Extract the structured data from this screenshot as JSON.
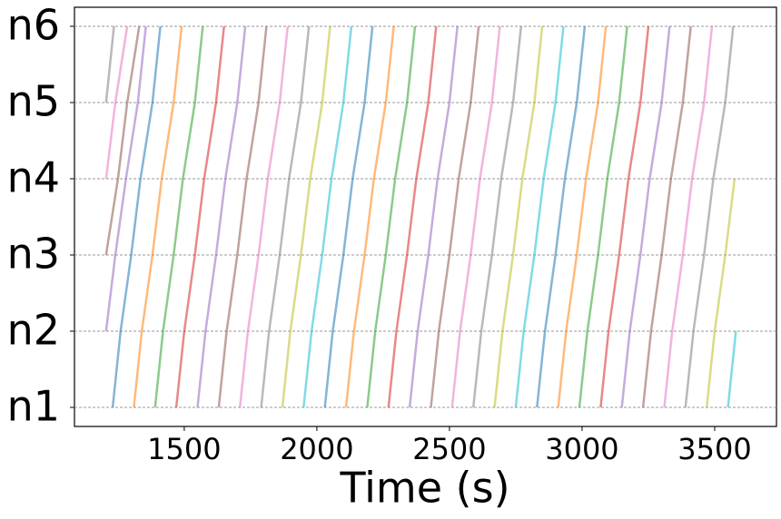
{
  "chart_data": {
    "type": "line",
    "x_label": "Time (s)",
    "xlim": [
      1086,
      3733
    ],
    "xticks": [
      1500,
      2000,
      2500,
      3000,
      3500
    ],
    "ylim": [
      0.75,
      6.25
    ],
    "yticks": [
      {
        "value": 1,
        "label": "n1"
      },
      {
        "value": 2,
        "label": "n2"
      },
      {
        "value": 3,
        "label": "n3"
      },
      {
        "value": 4,
        "label": "n4"
      },
      {
        "value": 5,
        "label": "n5"
      },
      {
        "value": 6,
        "label": "n6"
      }
    ],
    "grid": true,
    "series": [
      {
        "color": "#9467bd",
        "x": [
          1205,
          1240,
          1280,
          1325,
          1355
        ],
        "values": [
          2,
          3,
          4,
          5,
          6
        ]
      },
      {
        "color": "#8c564b",
        "x": [
          1205,
          1250,
          1285,
          1330
        ],
        "values": [
          3,
          4,
          5,
          6
        ]
      },
      {
        "color": "#e377c2",
        "x": [
          1205,
          1240,
          1285
        ],
        "values": [
          4,
          5,
          6
        ]
      },
      {
        "color": "#7f7f7f",
        "x": [
          1205,
          1235
        ],
        "values": [
          5,
          6
        ]
      },
      {
        "color": "#1f77b4",
        "x": [
          1230,
          1260,
          1300,
          1335,
          1380,
          1410
        ],
        "values": [
          1,
          2,
          3,
          4,
          5,
          6
        ]
      },
      {
        "color": "#ff7f0e",
        "x": [
          1310,
          1340,
          1380,
          1415,
          1460,
          1490
        ],
        "values": [
          1,
          2,
          3,
          4,
          5,
          6
        ]
      },
      {
        "color": "#2ca02c",
        "x": [
          1390,
          1420,
          1460,
          1495,
          1540,
          1570
        ],
        "values": [
          1,
          2,
          3,
          4,
          5,
          6
        ]
      },
      {
        "color": "#d62728",
        "x": [
          1470,
          1500,
          1540,
          1575,
          1620,
          1650
        ],
        "values": [
          1,
          2,
          3,
          4,
          5,
          6
        ]
      },
      {
        "color": "#9467bd",
        "x": [
          1550,
          1580,
          1620,
          1655,
          1700,
          1730
        ],
        "values": [
          1,
          2,
          3,
          4,
          5,
          6
        ]
      },
      {
        "color": "#8c564b",
        "x": [
          1630,
          1660,
          1700,
          1735,
          1780,
          1810
        ],
        "values": [
          1,
          2,
          3,
          4,
          5,
          6
        ]
      },
      {
        "color": "#e377c2",
        "x": [
          1710,
          1740,
          1780,
          1815,
          1860,
          1890
        ],
        "values": [
          1,
          2,
          3,
          4,
          5,
          6
        ]
      },
      {
        "color": "#7f7f7f",
        "x": [
          1790,
          1820,
          1860,
          1895,
          1940,
          1970
        ],
        "values": [
          1,
          2,
          3,
          4,
          5,
          6
        ]
      },
      {
        "color": "#bcbd22",
        "x": [
          1870,
          1900,
          1940,
          1975,
          2020,
          2050
        ],
        "values": [
          1,
          2,
          3,
          4,
          5,
          6
        ]
      },
      {
        "color": "#17becf",
        "x": [
          1950,
          1980,
          2020,
          2055,
          2100,
          2130
        ],
        "values": [
          1,
          2,
          3,
          4,
          5,
          6
        ]
      },
      {
        "color": "#1f77b4",
        "x": [
          2030,
          2060,
          2100,
          2135,
          2180,
          2210
        ],
        "values": [
          1,
          2,
          3,
          4,
          5,
          6
        ]
      },
      {
        "color": "#ff7f0e",
        "x": [
          2110,
          2140,
          2180,
          2215,
          2260,
          2290
        ],
        "values": [
          1,
          2,
          3,
          4,
          5,
          6
        ]
      },
      {
        "color": "#2ca02c",
        "x": [
          2190,
          2220,
          2260,
          2295,
          2340,
          2370
        ],
        "values": [
          1,
          2,
          3,
          4,
          5,
          6
        ]
      },
      {
        "color": "#d62728",
        "x": [
          2270,
          2300,
          2340,
          2375,
          2420,
          2450
        ],
        "values": [
          1,
          2,
          3,
          4,
          5,
          6
        ]
      },
      {
        "color": "#9467bd",
        "x": [
          2350,
          2380,
          2420,
          2455,
          2500,
          2530
        ],
        "values": [
          1,
          2,
          3,
          4,
          5,
          6
        ]
      },
      {
        "color": "#8c564b",
        "x": [
          2430,
          2460,
          2500,
          2535,
          2580,
          2610
        ],
        "values": [
          1,
          2,
          3,
          4,
          5,
          6
        ]
      },
      {
        "color": "#e377c2",
        "x": [
          2510,
          2540,
          2580,
          2615,
          2660,
          2690
        ],
        "values": [
          1,
          2,
          3,
          4,
          5,
          6
        ]
      },
      {
        "color": "#7f7f7f",
        "x": [
          2590,
          2620,
          2660,
          2695,
          2740,
          2770
        ],
        "values": [
          1,
          2,
          3,
          4,
          5,
          6
        ]
      },
      {
        "color": "#bcbd22",
        "x": [
          2670,
          2700,
          2740,
          2775,
          2820,
          2850
        ],
        "values": [
          1,
          2,
          3,
          4,
          5,
          6
        ]
      },
      {
        "color": "#17becf",
        "x": [
          2750,
          2780,
          2820,
          2855,
          2900,
          2930
        ],
        "values": [
          1,
          2,
          3,
          4,
          5,
          6
        ]
      },
      {
        "color": "#1f77b4",
        "x": [
          2830,
          2860,
          2900,
          2935,
          2980,
          3010
        ],
        "values": [
          1,
          2,
          3,
          4,
          5,
          6
        ]
      },
      {
        "color": "#ff7f0e",
        "x": [
          2910,
          2940,
          2980,
          3015,
          3060,
          3090
        ],
        "values": [
          1,
          2,
          3,
          4,
          5,
          6
        ]
      },
      {
        "color": "#2ca02c",
        "x": [
          2990,
          3020,
          3060,
          3095,
          3140,
          3170
        ],
        "values": [
          1,
          2,
          3,
          4,
          5,
          6
        ]
      },
      {
        "color": "#d62728",
        "x": [
          3070,
          3100,
          3140,
          3175,
          3220,
          3250
        ],
        "values": [
          1,
          2,
          3,
          4,
          5,
          6
        ]
      },
      {
        "color": "#9467bd",
        "x": [
          3150,
          3180,
          3220,
          3255,
          3300,
          3330
        ],
        "values": [
          1,
          2,
          3,
          4,
          5,
          6
        ]
      },
      {
        "color": "#8c564b",
        "x": [
          3230,
          3260,
          3300,
          3335,
          3380,
          3410
        ],
        "values": [
          1,
          2,
          3,
          4,
          5,
          6
        ]
      },
      {
        "color": "#e377c2",
        "x": [
          3310,
          3340,
          3380,
          3415,
          3460,
          3490
        ],
        "values": [
          1,
          2,
          3,
          4,
          5,
          6
        ]
      },
      {
        "color": "#7f7f7f",
        "x": [
          3390,
          3420,
          3460,
          3495,
          3540,
          3570
        ],
        "values": [
          1,
          2,
          3,
          4,
          5,
          6
        ]
      },
      {
        "color": "#bcbd22",
        "x": [
          3470,
          3500,
          3540,
          3575
        ],
        "values": [
          1,
          2,
          3,
          4
        ]
      },
      {
        "color": "#17becf",
        "x": [
          3550,
          3580
        ],
        "values": [
          1,
          2
        ]
      }
    ]
  }
}
